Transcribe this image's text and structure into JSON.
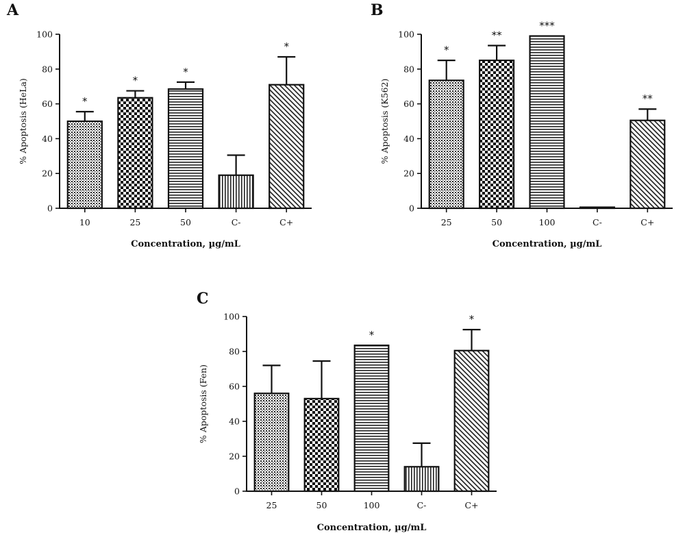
{
  "chart_data": [
    {
      "type": "bar",
      "panel": "A",
      "categories": [
        "10",
        "25",
        "50",
        "C-",
        "C+"
      ],
      "values": [
        50,
        63.5,
        68.5,
        19,
        71
      ],
      "errors": [
        5.5,
        4,
        4,
        11.5,
        16
      ],
      "significance": [
        "*",
        "*",
        "*",
        "",
        "*"
      ],
      "patterns": [
        "dots",
        "checker",
        "hlines",
        "vlines",
        "diag"
      ],
      "xlabel": "Concentration, µg/mL",
      "ylabel": "% Apoptosis (HeLa)",
      "ylim": [
        0,
        100
      ],
      "yticks": [
        0,
        20,
        40,
        60,
        80,
        100
      ],
      "grid": false
    },
    {
      "type": "bar",
      "panel": "B",
      "categories": [
        "25",
        "50",
        "100",
        "C-",
        "C+"
      ],
      "values": [
        73.5,
        85,
        99,
        0.5,
        50.5
      ],
      "errors": [
        11.5,
        8.5,
        0,
        0,
        6.5
      ],
      "significance": [
        "*",
        "**",
        "***",
        "",
        "**"
      ],
      "patterns": [
        "dots",
        "checker",
        "hlines",
        "vlines",
        "diag"
      ],
      "xlabel": "Concentration, µg/mL",
      "ylabel": "% Apoptosis (K562)",
      "ylim": [
        0,
        100
      ],
      "yticks": [
        0,
        20,
        40,
        60,
        80,
        100
      ],
      "grid": false
    },
    {
      "type": "bar",
      "panel": "C",
      "categories": [
        "25",
        "50",
        "100",
        "C-",
        "C+"
      ],
      "values": [
        56,
        53,
        83.5,
        14,
        80.5
      ],
      "errors": [
        16,
        21.5,
        0,
        13.5,
        12
      ],
      "significance": [
        "",
        "",
        "*",
        "",
        "*"
      ],
      "patterns": [
        "dots",
        "checker",
        "hlines",
        "vlines",
        "diag"
      ],
      "xlabel": "Concentration, µg/mL",
      "ylabel": "% Apoptosis (Fen)",
      "ylim": [
        0,
        100
      ],
      "yticks": [
        0,
        20,
        40,
        60,
        80,
        100
      ],
      "grid": false
    }
  ],
  "colors": {
    "ink": "#111111",
    "background": "#ffffff"
  }
}
